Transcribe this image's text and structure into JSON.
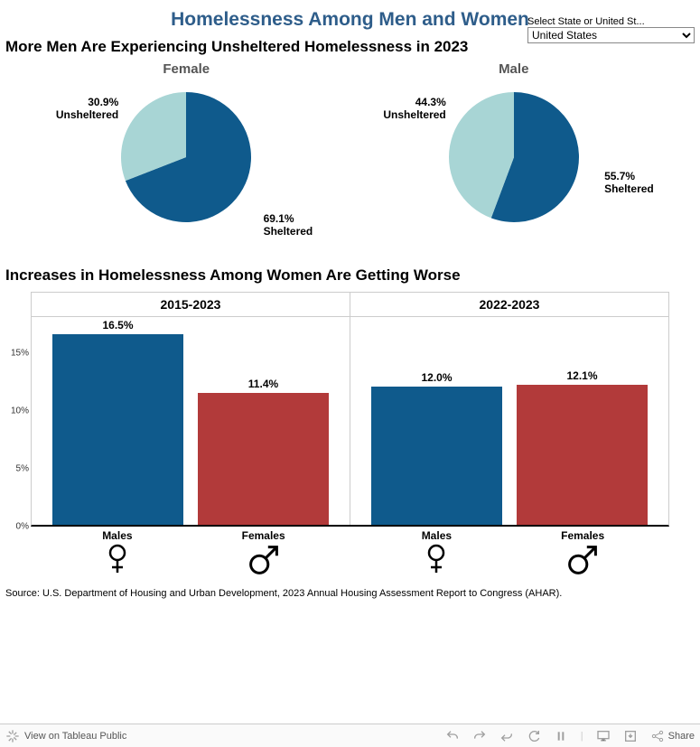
{
  "title": "Homelessness Among Men and Women",
  "title_color": "#2e5d8a",
  "selector": {
    "label": "Select State or United St...",
    "value": "United States"
  },
  "section1": {
    "title": "More Men Are Experiencing Unsheltered Homelessness in 2023",
    "colors": {
      "sheltered": "#0f5a8c",
      "unsheltered": "#a8d5d5"
    },
    "pies": [
      {
        "title": "Female",
        "unsheltered_pct": 30.9,
        "unsheltered_label": "30.9%\nUnsheltered",
        "sheltered_pct": 69.1,
        "sheltered_label": "69.1%\nSheltered",
        "show_sheltered_label": false
      },
      {
        "title": "Male",
        "unsheltered_pct": 44.3,
        "unsheltered_label": "44.3%\nUnsheltered",
        "sheltered_pct": 55.7,
        "sheltered_label": "55.7%\nSheltered",
        "show_sheltered_label": true
      }
    ]
  },
  "section2": {
    "title": "Increases in Homelessness Among Women Are Getting Worse",
    "ylim": [
      0,
      18
    ],
    "yticks": [
      0,
      5,
      10,
      15
    ],
    "colors": {
      "male": "#0f5a8c",
      "female": "#b23a3a"
    },
    "bar_width": 0.45,
    "periods": [
      {
        "label": "2015-2023",
        "bars": [
          {
            "group": "Males",
            "key": "male",
            "value": 16.5,
            "label": "16.5%"
          },
          {
            "group": "Females",
            "key": "female",
            "value": 11.4,
            "label": "11.4%"
          }
        ]
      },
      {
        "label": "2022-2023",
        "bars": [
          {
            "group": "Males",
            "key": "male",
            "value": 12.0,
            "label": "12.0%"
          },
          {
            "group": "Females",
            "key": "female",
            "value": 12.1,
            "label": "12.1%"
          }
        ]
      }
    ],
    "x_icons": [
      "female",
      "male",
      "female",
      "male"
    ]
  },
  "source": "Source: U.S. Department of Housing and Urban Development, 2023 Annual Housing Assessment Report to Congress (AHAR).",
  "toolbar": {
    "view_label": "View on Tableau Public",
    "share_label": "Share"
  },
  "background_color": "#ffffff"
}
